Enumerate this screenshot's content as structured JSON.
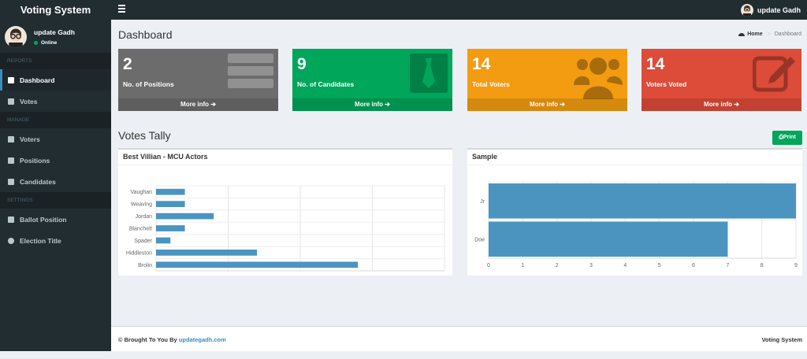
{
  "brand": "Voting System",
  "topbar": {
    "username": "update Gadh"
  },
  "sidebar": {
    "username": "update Gadh",
    "status": "Online",
    "sections": {
      "reports": "REPORTS",
      "manage": "MANAGE",
      "settings": "SETTINGS"
    },
    "items": [
      {
        "label": "Dashboard",
        "icon": "dashboard-icon"
      },
      {
        "label": "Votes",
        "icon": "lock-icon"
      },
      {
        "label": "Voters",
        "icon": "users-icon"
      },
      {
        "label": "Positions",
        "icon": "tasks-icon"
      },
      {
        "label": "Candidates",
        "icon": "black-tie-icon"
      },
      {
        "label": "Ballot Position",
        "icon": "file-icon"
      },
      {
        "label": "Election Title",
        "icon": "cog-icon"
      }
    ]
  },
  "page": {
    "title": "Dashboard",
    "breadcrumb_home": "Home",
    "breadcrumb_current": "Dashboard"
  },
  "stats": [
    {
      "number": "2",
      "label": "No. of Positions",
      "more": "More info",
      "color": "#6c6c6c",
      "icon": "tasks-icon"
    },
    {
      "number": "9",
      "label": "No. of Candidates",
      "more": "More info",
      "color": "#00a65a",
      "icon": "black-tie-icon"
    },
    {
      "number": "14",
      "label": "Total Voters",
      "more": "More info",
      "color": "#f39c12",
      "icon": "users-icon"
    },
    {
      "number": "14",
      "label": "Voters Voted",
      "more": "More info",
      "color": "#dd4b39",
      "icon": "edit-icon"
    }
  ],
  "tally": {
    "title": "Votes Tally",
    "print_label": "Print"
  },
  "chart_data": [
    {
      "type": "bar",
      "orientation": "horizontal",
      "title": "Best Villian - MCU Actors",
      "categories": [
        "Vaughan",
        "Weaving",
        "Jordan",
        "Blanchett",
        "Spader",
        "Hiddleston",
        "Brolin"
      ],
      "values": [
        2,
        2,
        4,
        2,
        1,
        7,
        14
      ],
      "xlim": [
        0,
        20
      ],
      "xticks": [
        0,
        5,
        10,
        15,
        20
      ],
      "grid": true,
      "color": "#4b94c0"
    },
    {
      "type": "bar",
      "orientation": "horizontal",
      "title": "Sample",
      "categories": [
        "Jr",
        "Doe"
      ],
      "values": [
        9,
        7
      ],
      "xlim": [
        0,
        9
      ],
      "xticks": [
        0,
        1,
        2,
        3,
        4,
        5,
        6,
        7,
        8,
        9
      ],
      "grid": true,
      "color": "#4b94c0"
    }
  ],
  "footer": {
    "prefix": "© Brought To You By ",
    "link": "updategadh.com",
    "right": "Voting System"
  }
}
